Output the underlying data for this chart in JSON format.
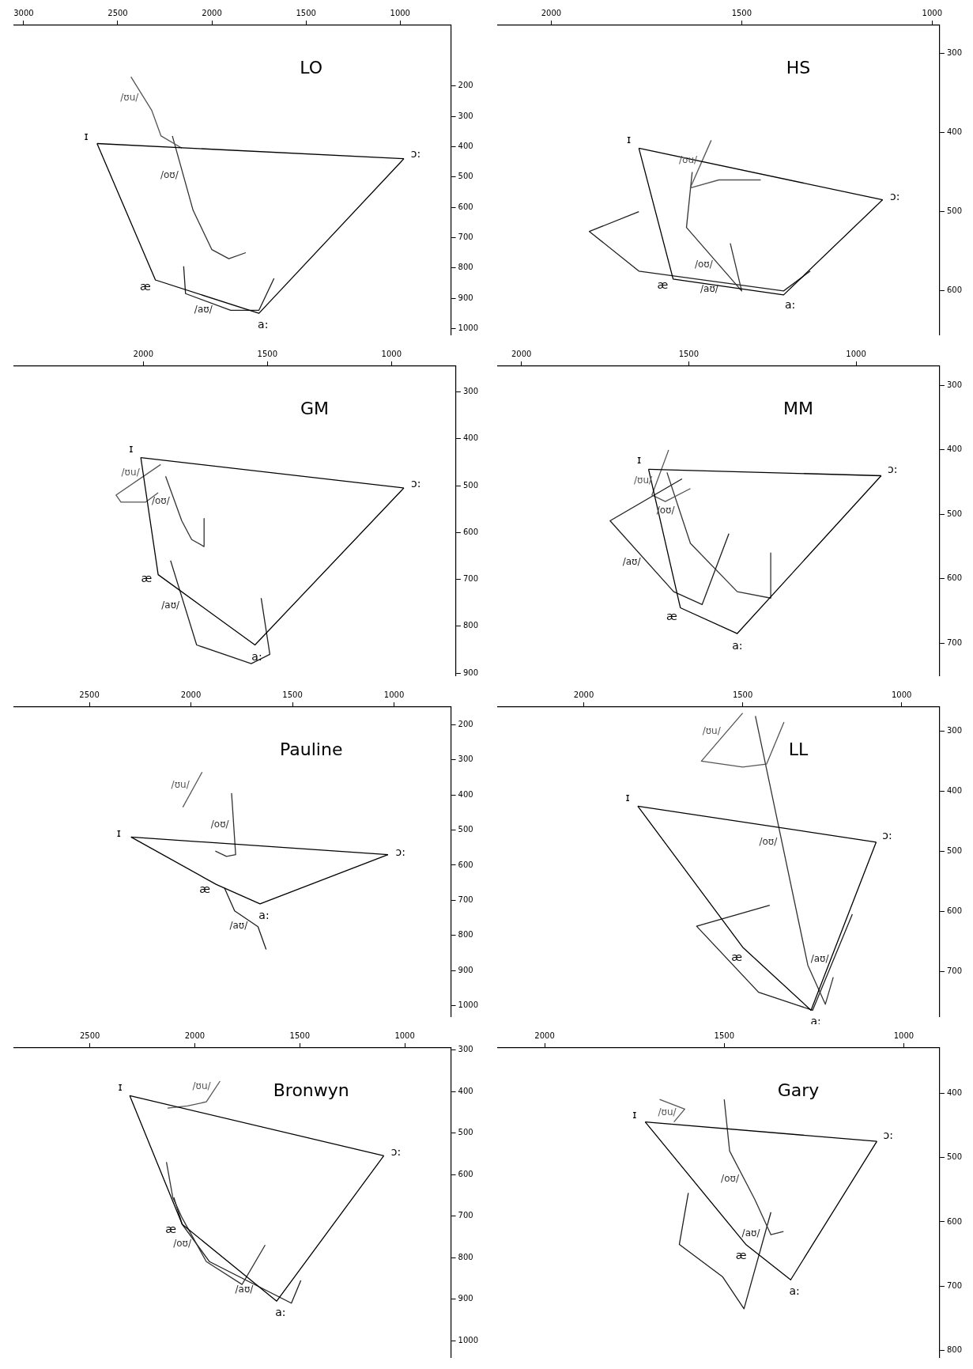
{
  "chart_data": [
    {
      "type": "line",
      "title": "LO",
      "xlim": [
        3050,
        730
      ],
      "ylim": [
        1020,
        0
      ],
      "xticks": [
        3000,
        2500,
        2000,
        1500,
        1000
      ],
      "yticks": [
        200,
        300,
        400,
        500,
        600,
        700,
        800,
        900,
        1000
      ],
      "annotations": [
        {
          "text": "ɪ",
          "x": 2610,
          "y": 390
        },
        {
          "text": "æ",
          "x": 2300,
          "y": 840
        },
        {
          "text": "a:",
          "x": 1750,
          "y": 950
        },
        {
          "text": "ɔ:",
          "x": 980,
          "y": 440
        }
      ],
      "series": [
        {
          "color": "#000000",
          "x": [
            2610,
            2300,
            1750,
            980
          ],
          "values": [
            390,
            840,
            950,
            440
          ]
        },
        {
          "color": "#000000",
          "x": [
            980,
            2610
          ],
          "values": [
            440,
            390
          ]
        },
        {
          "name": "/ʊu/",
          "color": "#555555",
          "x": [
            2160,
            2270,
            2320,
            2430
          ],
          "values": [
            405,
            365,
            280,
            170
          ]
        },
        {
          "name": "/oʊ/",
          "color": "#333333",
          "x": [
            1820,
            1910,
            2000,
            2100,
            2210
          ],
          "values": [
            750,
            770,
            740,
            610,
            365
          ]
        },
        {
          "name": "/aʊ/",
          "color": "#1e1e1e",
          "x": [
            2150,
            2140,
            1900,
            1750,
            1670
          ],
          "values": [
            795,
            885,
            940,
            940,
            835
          ]
        }
      ]
    },
    {
      "type": "line",
      "title": "HS",
      "xlim": [
        2140,
        980
      ],
      "ylim": [
        655,
        265
      ],
      "xticks": [
        2000,
        1500,
        1000
      ],
      "yticks": [
        300,
        400,
        500,
        600
      ],
      "annotations": [
        {
          "text": "ɪ",
          "x": 1770,
          "y": 420
        },
        {
          "text": "æ",
          "x": 1680,
          "y": 585
        },
        {
          "text": "a:",
          "x": 1390,
          "y": 605
        },
        {
          "text": "ɔ:",
          "x": 1130,
          "y": 485
        }
      ],
      "series": [
        {
          "color": "#000000",
          "x": [
            1770,
            1680,
            1390,
            1130
          ],
          "values": [
            420,
            585,
            605,
            485
          ]
        },
        {
          "color": "#000000",
          "x": [
            1130,
            1770
          ],
          "values": [
            485,
            420
          ]
        },
        {
          "name": "/ʊu/",
          "color": "#555555",
          "x": [
            1450,
            1560,
            1635,
            1580
          ],
          "values": [
            460,
            460,
            470,
            410
          ]
        },
        {
          "name": "/oʊ/",
          "color": "#333333",
          "x": [
            1530,
            1500,
            1645,
            1630
          ],
          "values": [
            540,
            600,
            520,
            450
          ]
        },
        {
          "name": "/aʊ/",
          "color": "#1e1e1e",
          "x": [
            1770,
            1900,
            1770,
            1390,
            1320
          ],
          "values": [
            500,
            525,
            575,
            600,
            575
          ]
        }
      ]
    },
    {
      "type": "line",
      "title": "GM",
      "xlim": [
        2520,
        740
      ],
      "ylim": [
        905,
        245
      ],
      "xticks": [
        2000,
        1500,
        1000
      ],
      "yticks": [
        300,
        400,
        500,
        600,
        700,
        800,
        900
      ],
      "annotations": [
        {
          "text": "ɪ",
          "x": 2010,
          "y": 440
        },
        {
          "text": "æ",
          "x": 1940,
          "y": 690
        },
        {
          "text": "a:",
          "x": 1550,
          "y": 840
        },
        {
          "text": "ɔ:",
          "x": 950,
          "y": 505
        }
      ],
      "series": [
        {
          "color": "#000000",
          "x": [
            2010,
            1940,
            1550,
            950
          ],
          "values": [
            440,
            690,
            840,
            505
          ]
        },
        {
          "color": "#000000",
          "x": [
            950,
            2010
          ],
          "values": [
            505,
            440
          ]
        },
        {
          "name": "/ʊu/",
          "color": "#555555",
          "x": [
            1940,
            1990,
            2090,
            2110,
            1930
          ],
          "values": [
            515,
            535,
            535,
            520,
            455
          ]
        },
        {
          "name": "/oʊ/",
          "color": "#333333",
          "x": [
            1755,
            1755,
            1805,
            1845,
            1910
          ],
          "values": [
            570,
            630,
            615,
            575,
            480
          ]
        },
        {
          "name": "/aʊ/",
          "color": "#1e1e1e",
          "x": [
            1890,
            1785,
            1565,
            1490,
            1525
          ],
          "values": [
            660,
            840,
            880,
            860,
            740
          ]
        }
      ]
    },
    {
      "type": "line",
      "title": "MM",
      "xlim": [
        2070,
        750
      ],
      "ylim": [
        750,
        270
      ],
      "xticks": [
        2000,
        1500,
        1000
      ],
      "yticks": [
        300,
        400,
        500,
        600,
        700
      ],
      "annotations": [
        {
          "text": "ɪ",
          "x": 1620,
          "y": 430
        },
        {
          "text": "æ",
          "x": 1525,
          "y": 645
        },
        {
          "text": "a:",
          "x": 1355,
          "y": 685
        },
        {
          "text": "ɔ:",
          "x": 925,
          "y": 440
        }
      ],
      "series": [
        {
          "color": "#000000",
          "x": [
            1620,
            1525,
            1355,
            925
          ],
          "values": [
            430,
            645,
            685,
            440
          ]
        },
        {
          "color": "#000000",
          "x": [
            925,
            1620
          ],
          "values": [
            440,
            430
          ]
        },
        {
          "name": "/ʊu/",
          "color": "#555555",
          "x": [
            1495,
            1570,
            1610,
            1560
          ],
          "values": [
            460,
            480,
            470,
            400
          ]
        },
        {
          "name": "/oʊ/",
          "color": "#333333",
          "x": [
            1255,
            1255,
            1355,
            1495,
            1565
          ],
          "values": [
            560,
            630,
            620,
            545,
            435
          ]
        },
        {
          "name": "/aʊ/",
          "color": "#1e1e1e",
          "x": [
            1520,
            1735,
            1545,
            1460,
            1380
          ],
          "values": [
            445,
            510,
            620,
            640,
            530
          ]
        }
      ]
    },
    {
      "type": "line",
      "title": "Pauline",
      "xlim": [
        2870,
        720
      ],
      "ylim": [
        1030,
        150
      ],
      "xticks": [
        2500,
        2000,
        1500,
        1000
      ],
      "yticks": [
        200,
        300,
        400,
        500,
        600,
        700,
        800,
        900,
        1000
      ],
      "annotations": [
        {
          "text": "ɪ",
          "x": 2295,
          "y": 520
        },
        {
          "text": "æ",
          "x": 1875,
          "y": 655
        },
        {
          "text": "a:",
          "x": 1660,
          "y": 710
        },
        {
          "text": "ɔ:",
          "x": 1030,
          "y": 570
        }
      ],
      "series": [
        {
          "color": "#000000",
          "x": [
            2295,
            1875,
            1660,
            1030
          ],
          "values": [
            520,
            655,
            710,
            570
          ]
        },
        {
          "color": "#000000",
          "x": [
            1030,
            2295
          ],
          "values": [
            570,
            520
          ]
        },
        {
          "name": "/ʊu/",
          "color": "#555555",
          "x": [
            2040,
            1945
          ],
          "values": [
            435,
            335
          ]
        },
        {
          "name": "/oʊ/",
          "color": "#333333",
          "x": [
            1880,
            1825,
            1780,
            1800
          ],
          "values": [
            560,
            575,
            570,
            395
          ]
        },
        {
          "name": "/aʊ/",
          "color": "#1e1e1e",
          "x": [
            1835,
            1785,
            1670,
            1630
          ],
          "values": [
            665,
            730,
            775,
            840
          ]
        }
      ]
    },
    {
      "type": "line",
      "title": "LL",
      "xlim": [
        2270,
        880
      ],
      "ylim": [
        775,
        260
      ],
      "xticks": [
        2000,
        1500,
        1000
      ],
      "yticks": [
        300,
        400,
        500,
        600,
        700
      ],
      "annotations": [
        {
          "text": "ɪ",
          "x": 1830,
          "y": 425
        },
        {
          "text": "æ",
          "x": 1500,
          "y": 660
        },
        {
          "text": "a:",
          "x": 1285,
          "y": 765
        },
        {
          "text": "ɔ:",
          "x": 1080,
          "y": 485
        }
      ],
      "series": [
        {
          "color": "#000000",
          "x": [
            1830,
            1500,
            1285,
            1080
          ],
          "values": [
            425,
            660,
            765,
            485
          ]
        },
        {
          "color": "#000000",
          "x": [
            1080,
            1830
          ],
          "values": [
            485,
            425
          ]
        },
        {
          "name": "/ʊu/",
          "color": "#555555",
          "x": [
            1500,
            1630,
            1500,
            1425,
            1370
          ],
          "values": [
            270,
            350,
            360,
            355,
            285
          ]
        },
        {
          "name": "/oʊ/",
          "color": "#333333",
          "x": [
            1215,
            1240,
            1295,
            1460
          ],
          "values": [
            710,
            755,
            690,
            275
          ]
        },
        {
          "name": "/aʊ/",
          "color": "#1e1e1e",
          "x": [
            1415,
            1645,
            1450,
            1280,
            1155
          ],
          "values": [
            590,
            625,
            735,
            765,
            605
          ]
        }
      ]
    },
    {
      "type": "line",
      "title": "Bronwyn",
      "xlim": [
        2860,
        780
      ],
      "ylim": [
        1040,
        295
      ],
      "xticks": [
        2500,
        2000,
        1500,
        1000
      ],
      "yticks": [
        300,
        400,
        500,
        600,
        700,
        800,
        900,
        1000
      ],
      "annotations": [
        {
          "text": "ɪ",
          "x": 2310,
          "y": 410
        },
        {
          "text": "æ",
          "x": 2060,
          "y": 720
        },
        {
          "text": "a:",
          "x": 1610,
          "y": 905
        },
        {
          "text": "ɔ:",
          "x": 1100,
          "y": 555
        }
      ],
      "series": [
        {
          "color": "#000000",
          "x": [
            2310,
            2060,
            1610,
            1100
          ],
          "values": [
            410,
            720,
            905,
            555
          ]
        },
        {
          "color": "#000000",
          "x": [
            1100,
            2310
          ],
          "values": [
            555,
            410
          ]
        },
        {
          "name": "/ʊu/",
          "color": "#555555",
          "x": [
            2130,
            2035,
            1945,
            1880
          ],
          "values": [
            440,
            435,
            425,
            375
          ]
        },
        {
          "name": "/oʊ/",
          "color": "#333333",
          "x": [
            1665,
            1775,
            1945,
            2060,
            2105,
            2135
          ],
          "values": [
            770,
            865,
            810,
            705,
            655,
            570
          ]
        },
        {
          "name": "/aʊ/",
          "color": "#1e1e1e",
          "x": [
            2100,
            2060,
            1930,
            1540,
            1495
          ],
          "values": [
            655,
            720,
            810,
            910,
            855
          ]
        }
      ]
    },
    {
      "type": "line",
      "title": "Gary",
      "xlim": [
        2130,
        900
      ],
      "ylim": [
        810,
        330
      ],
      "xticks": [
        2000,
        1500,
        1000
      ],
      "yticks": [
        400,
        500,
        600,
        700,
        800
      ],
      "annotations": [
        {
          "text": "ɪ",
          "x": 1720,
          "y": 445
        },
        {
          "text": "æ",
          "x": 1440,
          "y": 635
        },
        {
          "text": "a:",
          "x": 1315,
          "y": 690
        },
        {
          "text": "ɔ:",
          "x": 1075,
          "y": 475
        }
      ],
      "series": [
        {
          "color": "#000000",
          "x": [
            1720,
            1440,
            1315,
            1075
          ],
          "values": [
            445,
            635,
            690,
            475
          ]
        },
        {
          "color": "#000000",
          "x": [
            1075,
            1720
          ],
          "values": [
            475,
            445
          ]
        },
        {
          "name": "/ʊu/",
          "color": "#555555",
          "x": [
            1640,
            1610,
            1680
          ],
          "values": [
            445,
            425,
            410
          ]
        },
        {
          "name": "/oʊ/",
          "color": "#333333",
          "x": [
            1335,
            1370,
            1415,
            1485,
            1500
          ],
          "values": [
            615,
            620,
            565,
            490,
            410
          ]
        },
        {
          "name": "/aʊ/",
          "color": "#1e1e1e",
          "x": [
            1600,
            1625,
            1505,
            1445,
            1370
          ],
          "values": [
            555,
            635,
            685,
            735,
            585
          ]
        }
      ]
    }
  ]
}
